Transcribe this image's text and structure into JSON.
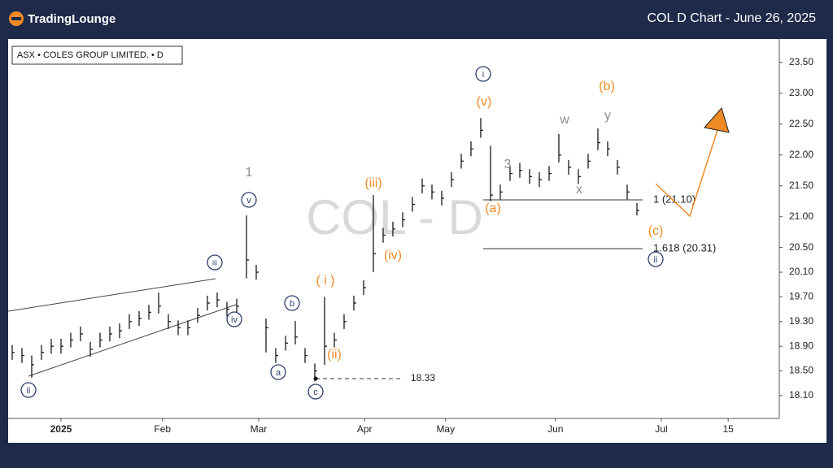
{
  "header": {
    "logo": "TradingLounge",
    "title": "COL D Chart - June 26, 2025"
  },
  "chart_data": {
    "type": "ohlc",
    "legend_text": "ASX • COLES GROUP LIMITED. • D",
    "watermark": "COL - D",
    "color": "#1a1a1a",
    "x": [
      -10,
      -8,
      -6,
      -4,
      -2,
      0,
      2,
      4,
      6,
      8,
      10,
      12,
      14,
      16,
      18,
      20,
      22,
      24,
      26,
      28,
      30,
      32,
      34,
      36,
      38,
      40,
      42,
      44,
      46,
      48,
      50,
      52,
      54,
      56,
      58,
      60,
      62,
      64,
      66,
      68,
      70,
      72,
      74,
      76,
      78,
      80,
      82,
      84,
      86,
      88,
      90,
      92,
      94,
      96,
      98,
      100,
      102,
      104,
      106,
      108,
      110,
      112,
      114,
      116,
      118
    ],
    "high": [
      18.92,
      18.87,
      18.75,
      18.92,
      19.02,
      19.02,
      19.12,
      19.22,
      18.97,
      19.12,
      19.22,
      19.27,
      19.42,
      19.47,
      19.57,
      19.77,
      19.42,
      19.32,
      19.32,
      19.52,
      19.72,
      19.77,
      19.62,
      19.67,
      21.02,
      20.22,
      19.35,
      18.87,
      19.07,
      19.31,
      18.87,
      18.62,
      19.7,
      19.12,
      19.42,
      19.72,
      19.97,
      21.35,
      20.82,
      20.92,
      21.07,
      21.32,
      21.62,
      21.52,
      21.42,
      21.72,
      22.02,
      22.22,
      22.6,
      22.15,
      21.52,
      21.82,
      21.87,
      21.77,
      21.72,
      21.82,
      22.34,
      21.92,
      21.77,
      22.02,
      22.43,
      22.22,
      21.92,
      21.52,
      21.22
    ],
    "low": [
      18.68,
      18.63,
      18.39,
      18.68,
      18.78,
      18.78,
      18.88,
      18.98,
      18.73,
      18.88,
      18.98,
      19.03,
      19.18,
      19.23,
      19.33,
      19.43,
      19.18,
      19.08,
      19.08,
      19.28,
      19.48,
      19.53,
      19.38,
      19.43,
      20.0,
      19.98,
      18.8,
      18.63,
      18.83,
      18.93,
      18.63,
      18.33,
      18.6,
      18.88,
      19.18,
      19.48,
      19.73,
      20.1,
      20.58,
      20.68,
      20.83,
      21.08,
      21.38,
      21.28,
      21.18,
      21.48,
      21.78,
      21.98,
      22.28,
      21.25,
      21.28,
      21.58,
      21.63,
      21.53,
      21.48,
      21.58,
      21.88,
      21.68,
      21.53,
      21.78,
      22.08,
      21.98,
      21.68,
      21.28,
      21.02
    ],
    "close": [
      18.8,
      18.75,
      18.6,
      18.8,
      18.9,
      18.9,
      19.0,
      19.1,
      18.85,
      19.0,
      19.1,
      19.15,
      19.3,
      19.35,
      19.45,
      19.55,
      19.3,
      19.2,
      19.2,
      19.4,
      19.6,
      19.65,
      19.5,
      19.55,
      20.3,
      20.1,
      19.2,
      18.75,
      18.95,
      19.05,
      18.75,
      18.5,
      18.9,
      19.0,
      19.3,
      19.6,
      19.85,
      20.4,
      20.7,
      20.8,
      20.95,
      21.2,
      21.5,
      21.4,
      21.3,
      21.6,
      21.9,
      22.1,
      22.4,
      21.35,
      21.4,
      21.7,
      21.75,
      21.65,
      21.6,
      21.7,
      22.0,
      21.8,
      21.65,
      21.9,
      22.2,
      22.1,
      21.8,
      21.4,
      21.1
    ],
    "xlim": [
      -10.83,
      147.17
    ],
    "xticks": [
      {
        "value": 0,
        "label": "2025"
      },
      {
        "value": 20.8,
        "label": "Feb"
      },
      {
        "value": 40.5,
        "label": "Mar"
      },
      {
        "value": 62.2,
        "label": "Apr"
      },
      {
        "value": 78.8,
        "label": "May"
      },
      {
        "value": 101.3,
        "label": "Jun"
      },
      {
        "value": 123,
        "label": "Jul"
      },
      {
        "value": 136.7,
        "label": "15"
      }
    ],
    "ylim": [
      17.73,
      23.88
    ],
    "yticks": [
      {
        "value": 23.5,
        "label": "23.50"
      },
      {
        "value": 23,
        "label": "23.00"
      },
      {
        "value": 22.5,
        "label": "22.50"
      },
      {
        "value": 22,
        "label": "22.00"
      },
      {
        "value": 21.5,
        "label": "21.50"
      },
      {
        "value": 21,
        "label": "21.00"
      },
      {
        "value": 20.5,
        "label": "20.50"
      },
      {
        "value": 20.1,
        "label": "20.10"
      },
      {
        "value": 19.7,
        "label": "19.70"
      },
      {
        "value": 19.3,
        "label": "19.30"
      },
      {
        "value": 18.9,
        "label": "18.90"
      },
      {
        "value": 18.5,
        "label": "18.50"
      },
      {
        "value": 18.1,
        "label": "18.10"
      }
    ],
    "levels": [
      "18.33",
      "1 (21.10)",
      "1.618 (20.31)"
    ],
    "annotations": [
      {
        "text": "1",
        "color": "#8c8c8c"
      },
      {
        "text": "v",
        "color": "#2e3f6e",
        "style": "circled"
      },
      {
        "text": "iii",
        "color": "#2e3f6e",
        "style": "circled"
      },
      {
        "text": "iv",
        "color": "#2e3f6e",
        "style": "circled"
      },
      {
        "text": "ii",
        "color": "#2e3f6e",
        "style": "circled"
      },
      {
        "text": "a",
        "color": "#2e3f6e",
        "style": "circled"
      },
      {
        "text": "b",
        "color": "#2e3f6e",
        "style": "circled"
      },
      {
        "text": "c",
        "color": "#2e3f6e",
        "style": "circled"
      },
      {
        "text": "( i )",
        "color": "#f08a24"
      },
      {
        "text": "(ii)",
        "color": "#f08a24"
      },
      {
        "text": "(iii)",
        "color": "#f08a24"
      },
      {
        "text": "(iv)",
        "color": "#f08a24"
      },
      {
        "text": "(v)",
        "color": "#f08a24"
      },
      {
        "text": "i",
        "color": "#2e3f6e",
        "style": "circled"
      },
      {
        "text": "w",
        "color": "#8c8c8c"
      },
      {
        "text": "y",
        "color": "#8c8c8c"
      },
      {
        "text": "(b)",
        "color": "#f08a24"
      },
      {
        "text": "x",
        "color": "#8c8c8c"
      },
      {
        "text": "(a)",
        "color": "#f08a24"
      },
      {
        "text": "(c)",
        "color": "#f08a24"
      },
      {
        "text": "ii",
        "color": "#2e3f6e",
        "style": "circled"
      },
      {
        "text": "3",
        "color": "#8c8c8c"
      }
    ]
  }
}
